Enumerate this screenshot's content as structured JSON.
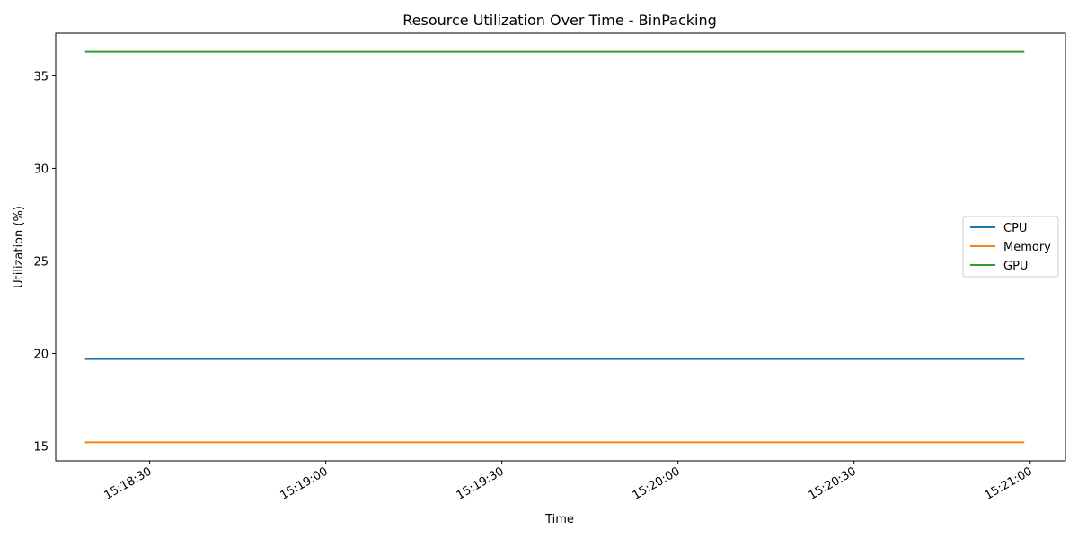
{
  "chart_data": {
    "type": "line",
    "title": "Resource Utilization Over Time - BinPacking",
    "xlabel": "Time",
    "ylabel": "Utilization (%)",
    "x": [
      "15:18:19",
      "15:20:59"
    ],
    "xlim": [
      "15:18:14",
      "15:21:06"
    ],
    "ylim": [
      14.2,
      37.3
    ],
    "yticks": [
      15,
      20,
      25,
      30,
      35
    ],
    "xticks": [
      "15:18:30",
      "15:19:00",
      "15:19:30",
      "15:20:00",
      "15:20:30",
      "15:21:00"
    ],
    "grid": false,
    "legend_position": "center-right",
    "series": [
      {
        "name": "CPU",
        "color": "#1f77b4",
        "values": [
          19.7,
          19.7
        ]
      },
      {
        "name": "Memory",
        "color": "#ff7f0e",
        "values": [
          15.2,
          15.2
        ]
      },
      {
        "name": "GPU",
        "color": "#2ca02c",
        "values": [
          36.3,
          36.3
        ]
      }
    ]
  }
}
